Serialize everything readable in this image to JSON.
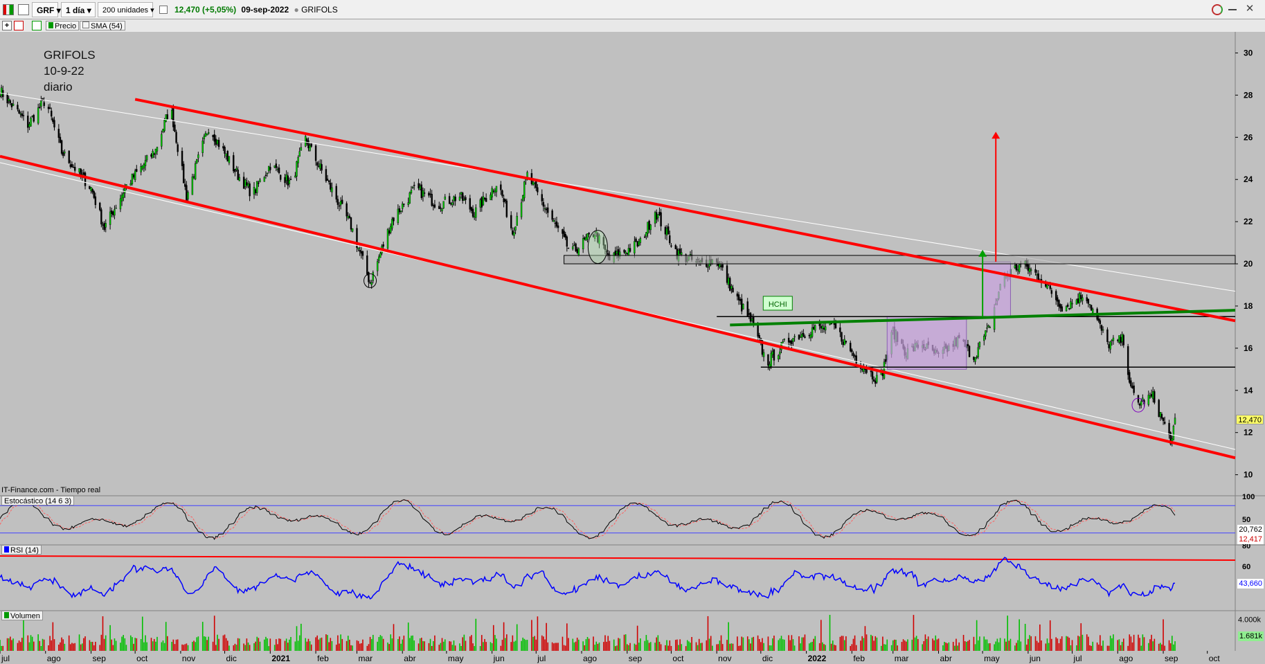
{
  "toolbar": {
    "symbol": "GRF",
    "interval": "1 día",
    "units": "200 unidades",
    "quote": "12,470 (+5,05%)",
    "date": "09-sep-2022",
    "name": "GRIFOLS"
  },
  "indicators": {
    "price": "Precio",
    "sma": "SMA (54)"
  },
  "annotation": {
    "line1": "GRIFOLS",
    "line2": "10-9-22",
    "line3": "diario"
  },
  "source": "IT-Finance.com - Tiempo real",
  "panels": {
    "stoch": {
      "title": "Estocástico (14 6 3)",
      "value1": "20,762",
      "value2": "12,417",
      "ticks": [
        "100",
        "50"
      ]
    },
    "rsi": {
      "title": "RSI (14)",
      "value": "43,660",
      "ticks": [
        "80",
        "60"
      ]
    },
    "volume": {
      "title": "Volumen",
      "value": "1.681k",
      "ticks": [
        "4.000k"
      ]
    }
  },
  "pattern_label": "HCHI",
  "last_price_label": "12,470",
  "colors": {
    "up": "#00cc00",
    "down": "#000000",
    "channel": "#ff0000",
    "neckline": "#008000",
    "rsi": "#0000ff",
    "box": "#c9a3e0"
  },
  "chart_data": {
    "type": "candlestick",
    "title": "GRIFOLS",
    "y_axis": {
      "ticks": [
        10,
        12,
        14,
        16,
        18,
        20,
        22,
        24,
        26,
        28,
        30
      ],
      "range": [
        9.2,
        31
      ]
    },
    "x_axis": {
      "range": [
        "2020-07-01",
        "2022-10-20"
      ],
      "labels": [
        "jul",
        "ago",
        "sep",
        "oct",
        "nov",
        "dic",
        "2021",
        "feb",
        "mar",
        "abr",
        "may",
        "jun",
        "jul",
        "ago",
        "sep",
        "oct",
        "nov",
        "dic",
        "2022",
        "feb",
        "mar",
        "abr",
        "may",
        "jun",
        "jul",
        "ago",
        "sep",
        "oct"
      ]
    },
    "price_path": [
      [
        "2020-07-01",
        28.2
      ],
      [
        "2020-07-20",
        26.6
      ],
      [
        "2020-08-01",
        27.8
      ],
      [
        "2020-08-12",
        25.3
      ],
      [
        "2020-09-01",
        23.6
      ],
      [
        "2020-09-10",
        21.7
      ],
      [
        "2020-09-25",
        23.7
      ],
      [
        "2020-10-15",
        25.4
      ],
      [
        "2020-10-25",
        27.5
      ],
      [
        "2020-11-05",
        23.2
      ],
      [
        "2020-11-20",
        26.5
      ],
      [
        "2020-12-10",
        24.2
      ],
      [
        "2020-12-20",
        23.3
      ],
      [
        "2021-01-01",
        24.7
      ],
      [
        "2021-01-15",
        23.8
      ],
      [
        "2021-01-25",
        25.9
      ],
      [
        "2021-02-05",
        24.4
      ],
      [
        "2021-02-25",
        21.8
      ],
      [
        "2021-03-10",
        19.1
      ],
      [
        "2021-03-25",
        22.1
      ],
      [
        "2021-04-10",
        23.6
      ],
      [
        "2021-04-25",
        22.8
      ],
      [
        "2021-05-10",
        23.2
      ],
      [
        "2021-05-20",
        22.4
      ],
      [
        "2021-06-05",
        23.9
      ],
      [
        "2021-06-15",
        21.5
      ],
      [
        "2021-06-25",
        24.2
      ],
      [
        "2021-07-10",
        22.3
      ],
      [
        "2021-07-25",
        20.5
      ],
      [
        "2021-08-10",
        21.5
      ],
      [
        "2021-08-20",
        20.2
      ],
      [
        "2021-09-10",
        21.0
      ],
      [
        "2021-09-20",
        22.5
      ],
      [
        "2021-10-05",
        20.5
      ],
      [
        "2021-10-20",
        20.0
      ],
      [
        "2021-11-01",
        20.2
      ],
      [
        "2021-11-15",
        18.3
      ],
      [
        "2021-11-25",
        17.2
      ],
      [
        "2021-12-05",
        15.3
      ],
      [
        "2021-12-20",
        16.4
      ],
      [
        "2022-01-05",
        16.9
      ],
      [
        "2022-01-20",
        17.0
      ],
      [
        "2022-02-05",
        15.4
      ],
      [
        "2022-02-20",
        14.4
      ],
      [
        "2022-03-01",
        16.8
      ],
      [
        "2022-03-10",
        15.8
      ],
      [
        "2022-03-20",
        16.2
      ],
      [
        "2022-04-01",
        15.6
      ],
      [
        "2022-04-15",
        16.4
      ],
      [
        "2022-04-25",
        15.6
      ],
      [
        "2022-05-05",
        16.9
      ],
      [
        "2022-05-15",
        19.4
      ],
      [
        "2022-05-28",
        20.0
      ],
      [
        "2022-06-10",
        19.3
      ],
      [
        "2022-06-25",
        17.9
      ],
      [
        "2022-07-10",
        18.6
      ],
      [
        "2022-07-25",
        16.2
      ],
      [
        "2022-08-05",
        16.4
      ],
      [
        "2022-08-10",
        14.0
      ],
      [
        "2022-08-15",
        13.4
      ],
      [
        "2022-08-25",
        13.7
      ],
      [
        "2022-09-05",
        11.8
      ],
      [
        "2022-09-07",
        11.6
      ],
      [
        "2022-09-09",
        12.5
      ]
    ],
    "last_price": 12.47,
    "annotations": {
      "channel_upper": [
        [
          "2020-10-01",
          27.8
        ],
        [
          "2022-10-20",
          17.3
        ]
      ],
      "channel_lower": [
        [
          "2020-07-01",
          25.1
        ],
        [
          "2022-10-20",
          10.8
        ]
      ],
      "thin_line_upper": [
        [
          "2020-07-01",
          28.1
        ],
        [
          "2022-10-20",
          18.7
        ]
      ],
      "thin_line_lower": [
        [
          "2020-07-01",
          24.8
        ],
        [
          "2022-10-20",
          11.2
        ]
      ],
      "neckline": [
        [
          "2021-11-10",
          17.1
        ],
        [
          "2022-10-20",
          17.8
        ]
      ],
      "hline_20": {
        "from": "2021-07-20",
        "to": "2022-10-20",
        "y1": 20.0,
        "y2": 20.4
      },
      "hline_17_5": {
        "from": "2021-11-01",
        "to": "2022-10-20",
        "y": 17.5
      },
      "hline_15": {
        "from": "2021-12-01",
        "to": "2022-10-20",
        "y": 15.1
      },
      "hchi_box": {
        "from": "2022-02-25",
        "to": "2022-04-20",
        "y1": 15.0,
        "y2": 17.5
      },
      "breakout_box": {
        "from": "2022-05-01",
        "to": "2022-05-20",
        "y1": 17.5,
        "y2": 20.1
      },
      "green_arrow": {
        "x": "2022-05-01",
        "from": 17.5,
        "to": 20.6
      },
      "red_arrow": {
        "x": "2022-05-10",
        "from": 20.1,
        "to": 26.2
      }
    },
    "stochastic": {
      "range": [
        0,
        100
      ],
      "bands": [
        80,
        20
      ]
    },
    "rsi": {
      "range": [
        20,
        80
      ],
      "resistance": [
        [
          "2020-07-01",
          70
        ],
        [
          "2022-10-20",
          66
        ]
      ]
    },
    "volume": {
      "range": [
        0,
        5000
      ]
    }
  }
}
